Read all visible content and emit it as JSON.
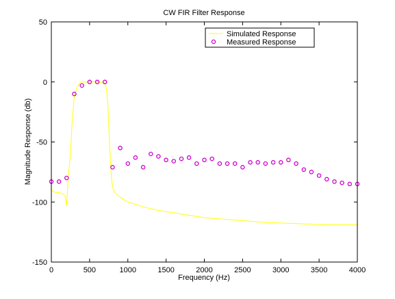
{
  "chart_data": {
    "type": "line",
    "title": "CW FIR Filter Response",
    "xlabel": "Frequency (Hz)",
    "ylabel": "Magnitude Response (db)",
    "xlim": [
      0,
      4000
    ],
    "ylim": [
      -150,
      50
    ],
    "xticks": [
      0,
      500,
      1000,
      1500,
      2000,
      2500,
      3000,
      3500,
      4000
    ],
    "yticks": [
      -150,
      -100,
      -50,
      0,
      50
    ],
    "grid": false,
    "legend_position": "top-right",
    "series": [
      {
        "name": "Simulated Response",
        "style": "line",
        "color": "#ffff00",
        "x": [
          0,
          50,
          100,
          150,
          180,
          200,
          220,
          250,
          270,
          300,
          330,
          370,
          400,
          450,
          500,
          600,
          700,
          720,
          740,
          760,
          780,
          800,
          830,
          900,
          1000,
          1200,
          1400,
          1600,
          1800,
          2000,
          2400,
          2800,
          3200,
          3600,
          4000
        ],
        "y": [
          -90,
          -92,
          -92,
          -93,
          -95,
          -103,
          -80,
          -60,
          -35,
          -12,
          -5,
          -1,
          0,
          0,
          0,
          0,
          -1,
          -5,
          -20,
          -50,
          -75,
          -88,
          -92,
          -96,
          -100,
          -104,
          -107,
          -109,
          -111,
          -113,
          -115,
          -117,
          -118,
          -119,
          -119
        ]
      },
      {
        "name": "Measured Response",
        "style": "markers",
        "marker": "circle",
        "color": "#cc00cc",
        "x": [
          0,
          100,
          200,
          300,
          400,
          500,
          600,
          700,
          800,
          900,
          1000,
          1100,
          1200,
          1300,
          1400,
          1500,
          1600,
          1700,
          1800,
          1900,
          2000,
          2100,
          2200,
          2300,
          2400,
          2500,
          2600,
          2700,
          2800,
          2900,
          3000,
          3100,
          3200,
          3300,
          3400,
          3500,
          3600,
          3700,
          3800,
          3900,
          4000
        ],
        "y": [
          -83,
          -83,
          -80,
          -10,
          -3,
          0,
          0,
          0,
          -71,
          -55,
          -68,
          -63,
          -71,
          -60,
          -62,
          -65,
          -66,
          -64,
          -63,
          -68,
          -65,
          -64,
          -68,
          -68,
          -68,
          -71,
          -67,
          -67,
          -68,
          -67,
          -67,
          -65,
          -68,
          -73,
          -75,
          -78,
          -81,
          -83,
          -84,
          -85,
          -85
        ]
      }
    ]
  }
}
